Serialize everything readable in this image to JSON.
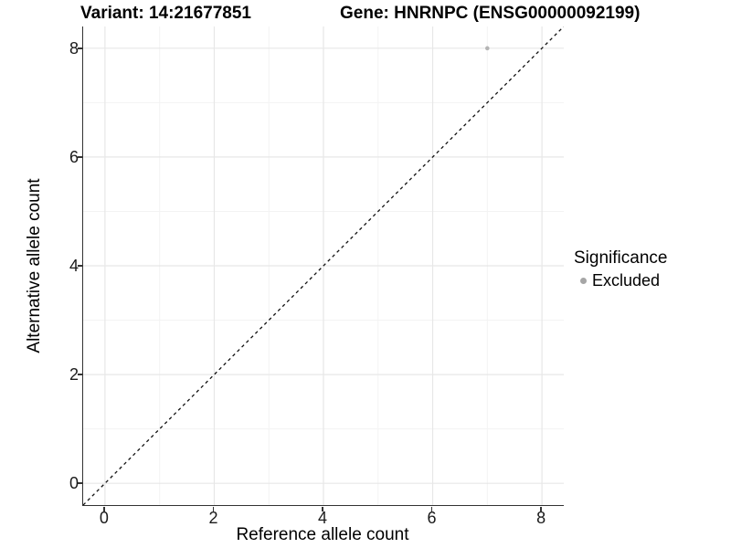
{
  "chart_data": {
    "type": "scatter",
    "title_left": "Variant: 14:21677851",
    "title_right": "Gene: HNRNPC (ENSG00000092199)",
    "xlabel": "Reference allele count",
    "ylabel": "Alternative allele count",
    "xlim": [
      -0.4,
      8.4
    ],
    "ylim": [
      -0.4,
      8.4
    ],
    "x_ticks": [
      0,
      2,
      4,
      6,
      8
    ],
    "y_ticks": [
      0,
      2,
      4,
      6,
      8
    ],
    "x_minor_ticks": [
      1,
      3,
      5,
      7
    ],
    "y_minor_ticks": [
      1,
      3,
      5,
      7
    ],
    "grid": true,
    "reference_line": {
      "type": "abline",
      "slope": 1,
      "intercept": 0,
      "style": "dashed",
      "color": "#111111"
    },
    "series": [
      {
        "name": "Excluded",
        "color": "#b4b4b4",
        "points": [
          {
            "x": 7,
            "y": 8
          }
        ]
      }
    ],
    "legend": {
      "title": "Significance",
      "position": "right",
      "items": [
        {
          "label": "Excluded",
          "color": "#a6a6a6"
        }
      ]
    },
    "colors": {
      "major_grid": "#e7e7e7",
      "minor_grid": "#f3f3f3",
      "axis_line": "#333333",
      "tick_label": "#1a1a1a",
      "point": "#b4b4b4"
    }
  }
}
